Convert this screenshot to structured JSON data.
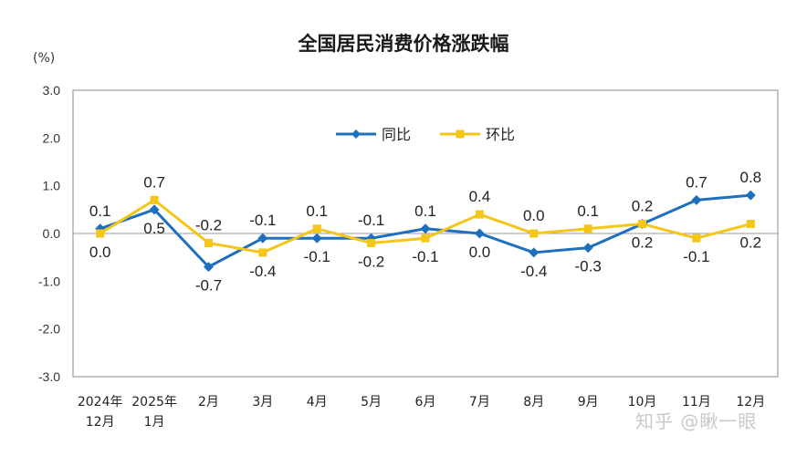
{
  "chart_data": {
    "type": "line",
    "title": "全国居民消费价格涨跌幅",
    "unit_label": "(%)",
    "ylim": [
      -3.0,
      3.0
    ],
    "yticks": [
      "3.0",
      "2.0",
      "1.0",
      "0.0",
      "-1.0",
      "-2.0",
      "-3.0"
    ],
    "categories": [
      [
        "2024年",
        "12月"
      ],
      [
        "2025年",
        "1月"
      ],
      [
        "2月"
      ],
      [
        "3月"
      ],
      [
        "4月"
      ],
      [
        "5月"
      ],
      [
        "6月"
      ],
      [
        "7月"
      ],
      [
        "8月"
      ],
      [
        "9月"
      ],
      [
        "10月"
      ],
      [
        "11月"
      ],
      [
        "12月"
      ]
    ],
    "legend_position": "top-center",
    "series": [
      {
        "name": "同比",
        "color": "#1f6fbf",
        "marker": "diamond",
        "values": [
          0.1,
          0.5,
          -0.7,
          -0.1,
          -0.1,
          -0.1,
          0.1,
          0.0,
          -0.4,
          -0.3,
          0.2,
          0.7,
          0.8
        ],
        "labels": [
          "0.1",
          "0.5",
          "-0.7",
          "-0.1",
          "-0.1",
          "-0.1",
          "0.1",
          "0.0",
          "-0.4",
          "-0.3",
          "0.2",
          "0.7",
          "0.8"
        ]
      },
      {
        "name": "环比",
        "color": "#f5c518",
        "marker": "square",
        "values": [
          0.0,
          0.7,
          -0.2,
          -0.4,
          0.1,
          -0.2,
          -0.1,
          0.4,
          0.0,
          0.1,
          0.2,
          -0.1,
          0.2
        ],
        "labels": [
          "0.0",
          "0.7",
          "-0.2",
          "-0.4",
          "0.1",
          "-0.2",
          "-0.1",
          "0.4",
          "0.0",
          "0.1",
          "0.2",
          "-0.1",
          "0.2"
        ]
      }
    ]
  },
  "watermark": "知乎 @瞅一眼"
}
